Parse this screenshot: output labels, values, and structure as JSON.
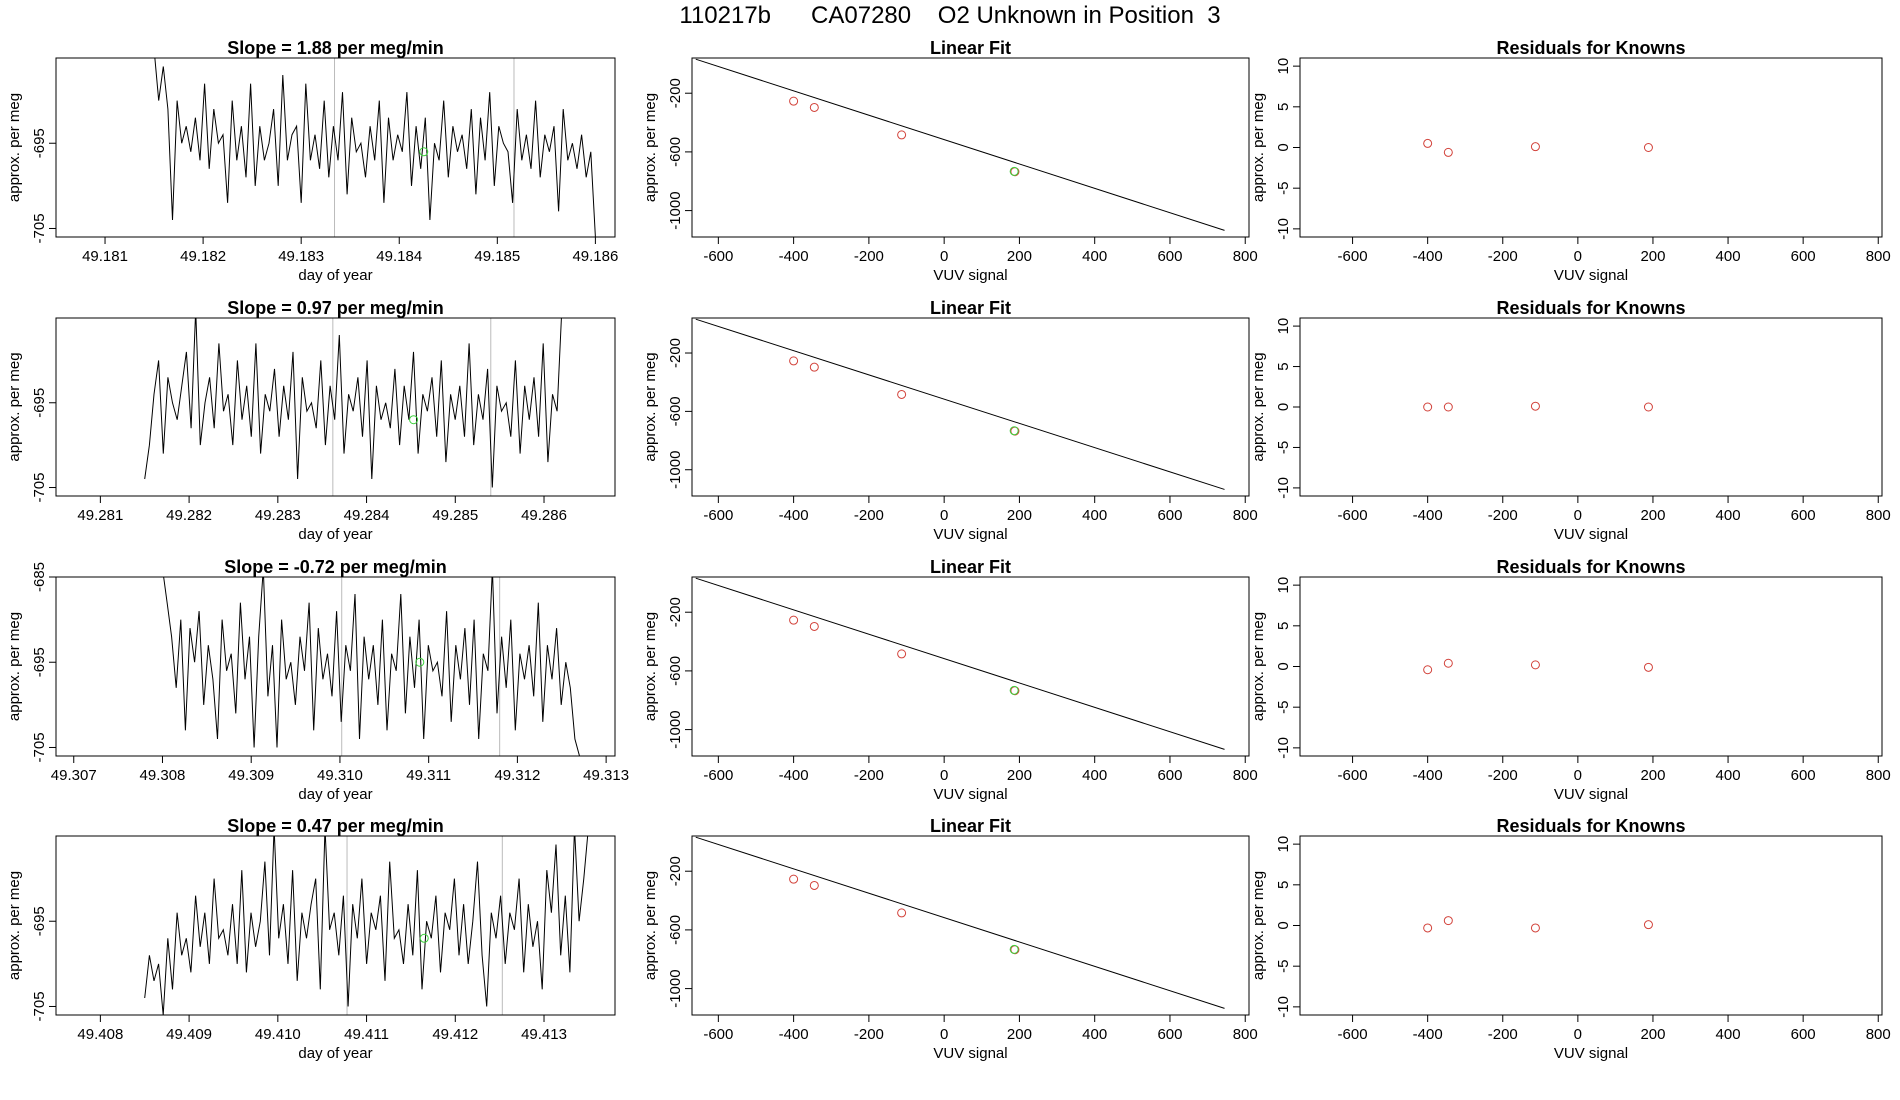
{
  "title": "110217b      CA07280    O2 Unknown in Position  3",
  "colors": {
    "known_points": "#d2423a",
    "unknown_points": "#3cd23c",
    "lines": "#000000",
    "sample_markers": "#bbbbbb"
  },
  "chart_data": [
    {
      "type": "line",
      "id": "r1-trace",
      "title": "Slope =  1.88  per meg/min",
      "xlabel": "day of year",
      "ylabel": "approx. per meg",
      "xlim": [
        49.1805,
        49.1862
      ],
      "ylim": [
        -706,
        -685
      ],
      "xticks": [
        "49.181",
        "49.182",
        "49.183",
        "49.184",
        "49.185",
        "49.186"
      ],
      "yticks": [
        "-695",
        "-705"
      ],
      "trace_x_range": [
        49.1815,
        49.186
      ],
      "trace_values": [
        -684,
        -690,
        -686,
        -691,
        -704,
        -690,
        -695,
        -693,
        -696,
        -692,
        -697,
        -688,
        -698,
        -691,
        -695,
        -694,
        -702,
        -690,
        -697,
        -693,
        -699,
        -688,
        -700,
        -693,
        -697,
        -695,
        -691,
        -700,
        -687,
        -697,
        -694,
        -693,
        -702,
        -688,
        -697,
        -694,
        -698,
        -690,
        -699,
        -693,
        -697,
        -689,
        -701,
        -692,
        -696,
        -695,
        -699,
        -693,
        -697,
        -690,
        -702,
        -692,
        -697,
        -694,
        -696,
        -689,
        -700,
        -693,
        -698,
        -692,
        -704,
        -695,
        -697,
        -690,
        -699,
        -693,
        -696,
        -694,
        -698,
        -691,
        -701,
        -692,
        -697,
        -689,
        -700,
        -693,
        -695,
        -696,
        -702,
        -691,
        -697,
        -694,
        -698,
        -690,
        -699,
        -694,
        -696,
        -693,
        -703,
        -691,
        -697,
        -695,
        -698,
        -694,
        -699,
        -696,
        -706
      ],
      "marker_lines_x": [
        49.18334,
        49.18517
      ],
      "unknown_point": {
        "x": 49.18425,
        "y": -696
      }
    },
    {
      "type": "scatter",
      "id": "r1-fit",
      "title": "Linear Fit",
      "xlabel": "VUV signal",
      "ylabel": "approx. per meg",
      "xlim": [
        -670,
        810
      ],
      "ylim": [
        -1180,
        40
      ],
      "xticks": [
        -600,
        -400,
        -200,
        0,
        200,
        400,
        600,
        800
      ],
      "yticks": [
        -200,
        -600,
        -1000
      ],
      "fit_line": {
        "x": [
          -660,
          745
        ],
        "y": [
          32,
          -1135
        ]
      },
      "known_points": [
        [
          -400,
          -254
        ],
        [
          -345,
          -297
        ],
        [
          -113,
          -484
        ],
        [
          188,
          -735
        ]
      ],
      "unknown_points": [
        [
          186,
          -733
        ]
      ]
    },
    {
      "type": "scatter",
      "id": "r1-resid",
      "title": "Residuals for Knowns",
      "xlabel": "VUV signal",
      "ylabel": "approx. per meg",
      "xlim": [
        -740,
        810
      ],
      "ylim": [
        -11,
        11
      ],
      "xticks": [
        -600,
        -400,
        -200,
        0,
        200,
        400,
        600,
        800
      ],
      "yticks": [
        10,
        5,
        0,
        -5,
        -10
      ],
      "known_points": [
        [
          -400,
          0.5
        ],
        [
          -345,
          -0.6
        ],
        [
          -113,
          0.1
        ],
        [
          188,
          0.0
        ]
      ]
    },
    {
      "type": "line",
      "id": "r2-trace",
      "title": "Slope =  0.97  per meg/min",
      "xlabel": "day of year",
      "ylabel": "approx. per meg",
      "xlim": [
        49.2805,
        49.2868
      ],
      "ylim": [
        -706,
        -685
      ],
      "xticks": [
        "49.281",
        "49.282",
        "49.283",
        "49.284",
        "49.285",
        "49.286"
      ],
      "yticks": [
        "-695",
        "-705"
      ],
      "trace_x_range": [
        49.2815,
        49.2862
      ],
      "trace_values": [
        -704,
        -700,
        -694,
        -690,
        -701,
        -692,
        -695,
        -697,
        -693,
        -689,
        -698,
        -684,
        -700,
        -695,
        -692,
        -698,
        -688,
        -696,
        -694,
        -700,
        -690,
        -697,
        -693,
        -699,
        -688,
        -701,
        -694,
        -696,
        -691,
        -699,
        -693,
        -697,
        -689,
        -704,
        -692,
        -696,
        -695,
        -698,
        -690,
        -700,
        -693,
        -697,
        -687,
        -701,
        -694,
        -696,
        -692,
        -699,
        -690,
        -704,
        -693,
        -697,
        -695,
        -698,
        -691,
        -700,
        -693,
        -697,
        -689,
        -701,
        -694,
        -696,
        -692,
        -699,
        -690,
        -702,
        -694,
        -697,
        -693,
        -699,
        -688,
        -700,
        -694,
        -697,
        -691,
        -705,
        -693,
        -696,
        -695,
        -699,
        -690,
        -701,
        -693,
        -697,
        -692,
        -699,
        -688,
        -702,
        -694,
        -696,
        -684
      ],
      "marker_lines_x": [
        49.28362,
        49.2854
      ],
      "unknown_point": {
        "x": 49.28453,
        "y": -697
      }
    },
    {
      "type": "scatter",
      "id": "r2-fit",
      "title": "Linear Fit",
      "xlabel": "VUV signal",
      "ylabel": "approx. per meg",
      "xlim": [
        -670,
        810
      ],
      "ylim": [
        -1180,
        40
      ],
      "xticks": [
        -600,
        -400,
        -200,
        0,
        200,
        400,
        600,
        800
      ],
      "yticks": [
        -200,
        -600,
        -1000
      ],
      "fit_line": {
        "x": [
          -660,
          745
        ],
        "y": [
          32,
          -1135
        ]
      },
      "known_points": [
        [
          -400,
          -254
        ],
        [
          -345,
          -297
        ],
        [
          -113,
          -484
        ],
        [
          188,
          -735
        ]
      ],
      "unknown_points": [
        [
          186,
          -733
        ]
      ]
    },
    {
      "type": "scatter",
      "id": "r2-resid",
      "title": "Residuals for Knowns",
      "xlabel": "VUV signal",
      "ylabel": "approx. per meg",
      "xlim": [
        -740,
        810
      ],
      "ylim": [
        -11,
        11
      ],
      "xticks": [
        -600,
        -400,
        -200,
        0,
        200,
        400,
        600,
        800
      ],
      "yticks": [
        10,
        5,
        0,
        -5,
        -10
      ],
      "known_points": [
        [
          -400,
          0.0
        ],
        [
          -345,
          0.0
        ],
        [
          -113,
          0.1
        ],
        [
          188,
          0.0
        ]
      ]
    },
    {
      "type": "line",
      "id": "r3-trace",
      "title": "Slope =  -0.72  per meg/min",
      "xlabel": "day of year",
      "ylabel": "approx. per meg",
      "xlim": [
        49.3068,
        49.3131
      ],
      "ylim": [
        -706,
        -685
      ],
      "xticks": [
        "49.307",
        "49.308",
        "49.309",
        "49.310",
        "49.311",
        "49.312",
        "49.313"
      ],
      "yticks": [
        "-685",
        "-695",
        "-705"
      ],
      "trace_x_range": [
        49.308,
        49.3127
      ],
      "trace_values": [
        -684,
        -688,
        -692,
        -698,
        -690,
        -703,
        -691,
        -695,
        -689,
        -700,
        -693,
        -697,
        -704,
        -690,
        -696,
        -694,
        -701,
        -688,
        -697,
        -692,
        -705,
        -692,
        -684,
        -699,
        -693,
        -705,
        -690,
        -697,
        -695,
        -700,
        -692,
        -696,
        -688,
        -703,
        -691,
        -697,
        -694,
        -699,
        -689,
        -702,
        -693,
        -696,
        -687,
        -704,
        -692,
        -697,
        -693,
        -700,
        -690,
        -703,
        -694,
        -696,
        -687,
        -701,
        -692,
        -698,
        -690,
        -704,
        -693,
        -696,
        -695,
        -699,
        -689,
        -702,
        -693,
        -697,
        -691,
        -700,
        -690,
        -704,
        -694,
        -696,
        -684,
        -701,
        -692,
        -698,
        -690,
        -703,
        -694,
        -697,
        -693,
        -699,
        -688,
        -702,
        -693,
        -697,
        -691,
        -700,
        -695,
        -698,
        -704,
        -706
      ],
      "marker_lines_x": [
        49.31002,
        49.3118
      ],
      "unknown_point": {
        "x": 49.3109,
        "y": -695
      }
    },
    {
      "type": "scatter",
      "id": "r3-fit",
      "title": "Linear Fit",
      "xlabel": "VUV signal",
      "ylabel": "approx. per meg",
      "xlim": [
        -670,
        810
      ],
      "ylim": [
        -1180,
        40
      ],
      "xticks": [
        -600,
        -400,
        -200,
        0,
        200,
        400,
        600,
        800
      ],
      "yticks": [
        -200,
        -600,
        -1000
      ],
      "fit_line": {
        "x": [
          -660,
          745
        ],
        "y": [
          32,
          -1135
        ]
      },
      "known_points": [
        [
          -400,
          -254
        ],
        [
          -345,
          -297
        ],
        [
          -113,
          -484
        ],
        [
          188,
          -735
        ]
      ],
      "unknown_points": [
        [
          186,
          -733
        ]
      ]
    },
    {
      "type": "scatter",
      "id": "r3-resid",
      "title": "Residuals for Knowns",
      "xlabel": "VUV signal",
      "ylabel": "approx. per meg",
      "xlim": [
        -740,
        810
      ],
      "ylim": [
        -11,
        11
      ],
      "xticks": [
        -600,
        -400,
        -200,
        0,
        200,
        400,
        600,
        800
      ],
      "yticks": [
        10,
        5,
        0,
        -5,
        -10
      ],
      "known_points": [
        [
          -400,
          -0.4
        ],
        [
          -345,
          0.4
        ],
        [
          -113,
          0.2
        ],
        [
          188,
          -0.1
        ]
      ]
    },
    {
      "type": "line",
      "id": "r4-trace",
      "title": "Slope =  0.47  per meg/min",
      "xlabel": "day of year",
      "ylabel": "approx. per meg",
      "xlim": [
        49.4075,
        49.4138
      ],
      "ylim": [
        -706,
        -685
      ],
      "xticks": [
        "49.408",
        "49.409",
        "49.410",
        "49.411",
        "49.412",
        "49.413"
      ],
      "yticks": [
        "-695",
        "-705"
      ],
      "trace_x_range": [
        49.4085,
        49.4135
      ],
      "trace_values": [
        -704,
        -699,
        -702,
        -700,
        -706,
        -697,
        -703,
        -694,
        -699,
        -697,
        -701,
        -692,
        -698,
        -694,
        -700,
        -690,
        -697,
        -696,
        -699,
        -693,
        -700,
        -689,
        -701,
        -694,
        -698,
        -695,
        -688,
        -699,
        -684,
        -697,
        -693,
        -700,
        -689,
        -702,
        -694,
        -697,
        -693,
        -690,
        -703,
        -684,
        -696,
        -694,
        -699,
        -692,
        -705,
        -693,
        -697,
        -690,
        -700,
        -694,
        -696,
        -692,
        -702,
        -688,
        -697,
        -696,
        -700,
        -693,
        -699,
        -689,
        -703,
        -695,
        -697,
        -692,
        -701,
        -694,
        -696,
        -690,
        -699,
        -693,
        -700,
        -695,
        -688,
        -699,
        -705,
        -694,
        -697,
        -692,
        -700,
        -694,
        -696,
        -690,
        -701,
        -693,
        -698,
        -695,
        -703,
        -689,
        -694,
        -686,
        -699,
        -692,
        -701,
        -684,
        -695,
        -690,
        -684
      ],
      "marker_lines_x": [
        49.41078,
        49.41253
      ],
      "unknown_point": {
        "x": 49.41165,
        "y": -697
      }
    },
    {
      "type": "scatter",
      "id": "r4-fit",
      "title": "Linear Fit",
      "xlabel": "VUV signal",
      "ylabel": "approx. per meg",
      "xlim": [
        -670,
        810
      ],
      "ylim": [
        -1180,
        40
      ],
      "xticks": [
        -600,
        -400,
        -200,
        0,
        200,
        400,
        600,
        800
      ],
      "yticks": [
        -200,
        -600,
        -1000
      ],
      "fit_line": {
        "x": [
          -660,
          745
        ],
        "y": [
          32,
          -1135
        ]
      },
      "known_points": [
        [
          -400,
          -254
        ],
        [
          -345,
          -297
        ],
        [
          -113,
          -484
        ],
        [
          188,
          -735
        ]
      ],
      "unknown_points": [
        [
          186,
          -733
        ]
      ]
    },
    {
      "type": "scatter",
      "id": "r4-resid",
      "title": "Residuals for Knowns",
      "xlabel": "VUV signal",
      "ylabel": "approx. per meg",
      "xlim": [
        -740,
        810
      ],
      "ylim": [
        -11,
        11
      ],
      "xticks": [
        -600,
        -400,
        -200,
        0,
        200,
        400,
        600,
        800
      ],
      "yticks": [
        10,
        5,
        0,
        -5,
        -10
      ],
      "known_points": [
        [
          -400,
          -0.3
        ],
        [
          -345,
          0.6
        ],
        [
          -113,
          -0.3
        ],
        [
          188,
          0.1
        ]
      ]
    }
  ]
}
